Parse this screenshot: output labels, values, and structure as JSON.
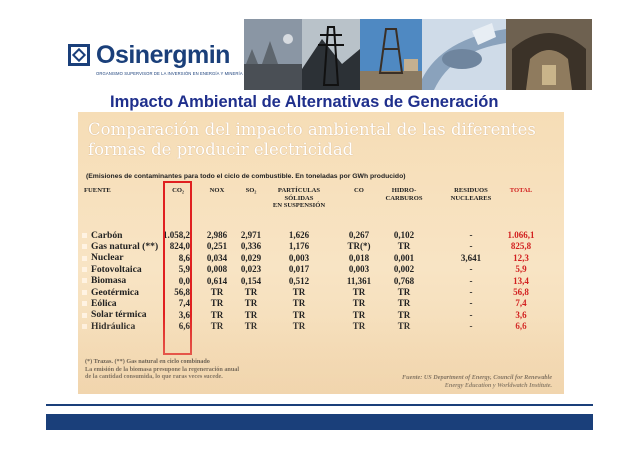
{
  "header": {
    "logo_name": "Osinergmin",
    "logo_subtitle": "ORGANISMO SUPERVISOR DE LA INVERSIÓN EN ENERGÍA Y MINERÍA",
    "photo_colors": [
      "#6f7a86",
      "#3f4a52",
      "#5a7fa0",
      "#7a94b6",
      "#6a5e4c"
    ]
  },
  "page_title": "Impacto Ambiental de Alternativas de Generación",
  "slide": {
    "title_line1": "Comparación del impacto ambiental de las diferentes",
    "title_line2": "formas de producir electricidad",
    "note": "(Emisiones de contaminantes para todo el ciclo de combustible. En toneladas por GWh producido)",
    "columns": [
      "FUENTE",
      "CO₂",
      "NOX",
      "SO₂",
      "PARTÍCULAS SÓLIDAS EN SUSPENSIÓN",
      "CO",
      "HIDRO-CARBUROS",
      "RESIDUOS NUCLEARES",
      "TOTAL"
    ],
    "columns_lines": {
      "particulas": [
        "PARTÍCULAS",
        "SÓLIDAS",
        "EN SUSPENSIÓN"
      ],
      "hidro": [
        "HIDRO-",
        "CARBUROS"
      ],
      "residuos": [
        "RESIDUOS",
        "NUCLEARES"
      ]
    },
    "rows": [
      {
        "fuente": "Carbón",
        "co2": "1.058,2",
        "nox": "2,986",
        "so2": "2,971",
        "part": "1,626",
        "co": "0,267",
        "hc": "0,102",
        "res": "-",
        "total": "1.066,1"
      },
      {
        "fuente": "Gas natural (**)",
        "co2": "824,0",
        "nox": "0,251",
        "so2": "0,336",
        "part": "1,176",
        "co": "TR(*)",
        "hc": "TR",
        "res": "-",
        "total": "825,8"
      },
      {
        "fuente": "Nuclear",
        "co2": "8,6",
        "nox": "0,034",
        "so2": "0,029",
        "part": "0,003",
        "co": "0,018",
        "hc": "0,001",
        "res": "3,641",
        "total": "12,3"
      },
      {
        "fuente": "Fotovoltaica",
        "co2": "5,9",
        "nox": "0,008",
        "so2": "0,023",
        "part": "0,017",
        "co": "0,003",
        "hc": "0,002",
        "res": "-",
        "total": "5,9"
      },
      {
        "fuente": "Biomasa",
        "co2": "0,0",
        "nox": "0,614",
        "so2": "0,154",
        "part": "0,512",
        "co": "11,361",
        "hc": "0,768",
        "res": "-",
        "total": "13,4"
      },
      {
        "fuente": "Geotérmica",
        "co2": "56,8",
        "nox": "TR",
        "so2": "TR",
        "part": "TR",
        "co": "TR",
        "hc": "TR",
        "res": "-",
        "total": "56,8"
      },
      {
        "fuente": "Eólica",
        "co2": "7,4",
        "nox": "TR",
        "so2": "TR",
        "part": "TR",
        "co": "TR",
        "hc": "TR",
        "res": "-",
        "total": "7,4"
      },
      {
        "fuente": "Solar térmica",
        "co2": "3,6",
        "nox": "TR",
        "so2": "TR",
        "part": "TR",
        "co": "TR",
        "hc": "TR",
        "res": "-",
        "total": "3,6"
      },
      {
        "fuente": "Hidráulica",
        "co2": "6,6",
        "nox": "TR",
        "so2": "TR",
        "part": "TR",
        "co": "TR",
        "hc": "TR",
        "res": "-",
        "total": "6,6"
      }
    ],
    "footnote_line1": "(*) Trazas.   (**) Gas natural en ciclo combinado",
    "footnote_line2": "La emisión de la biomasa presupone la regeneración anual",
    "footnote_line3": "de la cantidad consumida, lo que raras veces sucede.",
    "source_line1": "Fuente: US Department of Energy, Council for Renewable",
    "source_line2": "Energy Education y Worldwatch Institute."
  },
  "colors": {
    "accent": "#1a3f7a",
    "title": "#1f2f8c",
    "highlight": "#e02020"
  }
}
